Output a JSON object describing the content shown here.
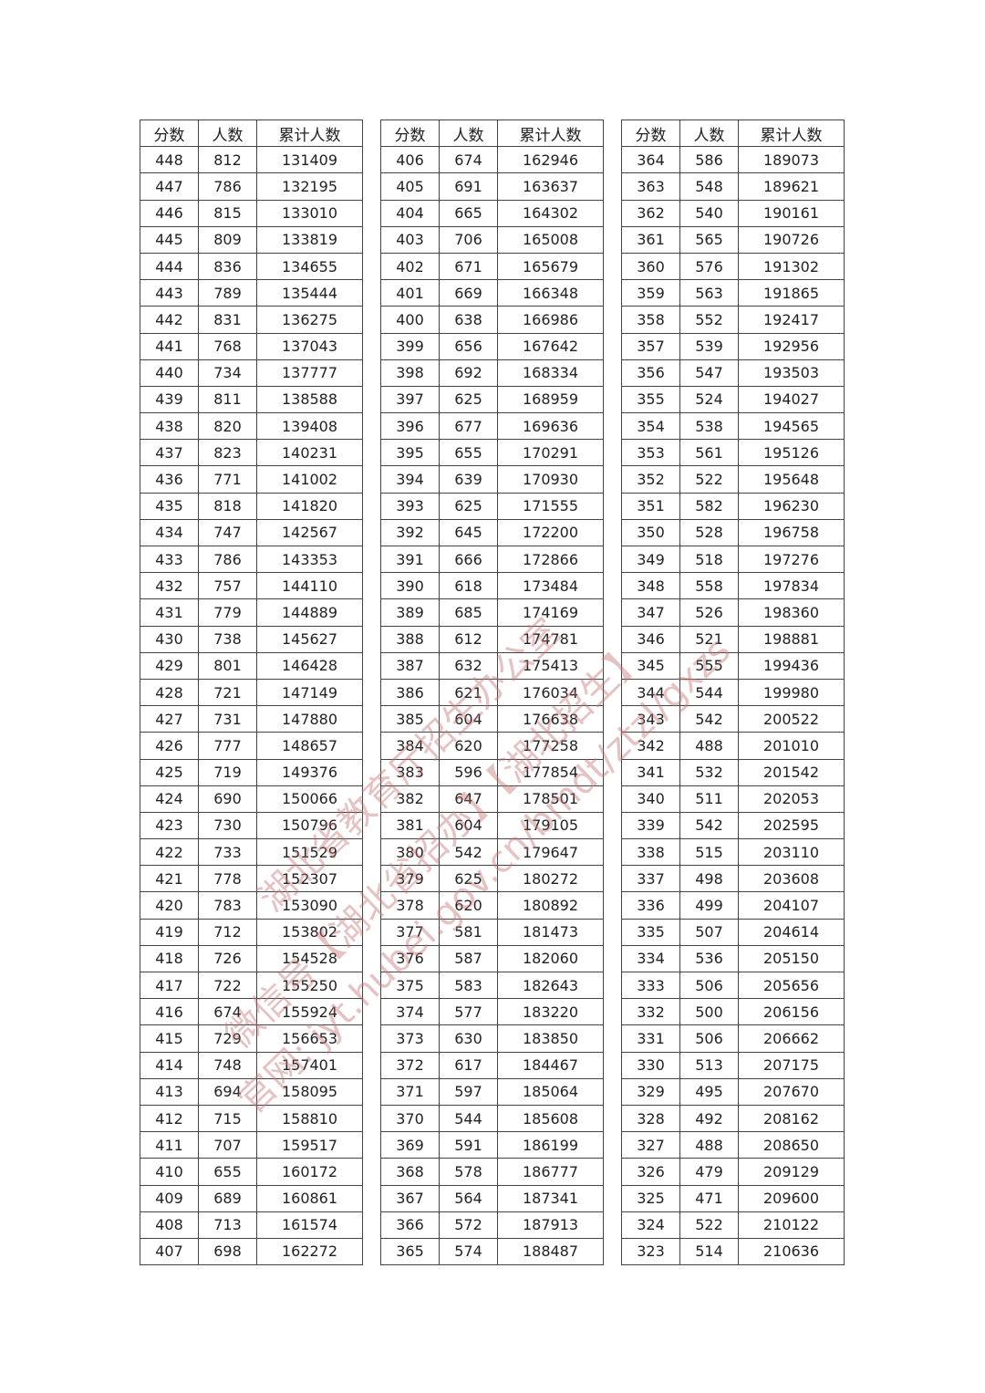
{
  "headers": [
    "分数",
    "人数",
    "累计人数"
  ],
  "tables": [
    [
      [
        448,
        812,
        131409
      ],
      [
        447,
        786,
        132195
      ],
      [
        446,
        815,
        133010
      ],
      [
        445,
        809,
        133819
      ],
      [
        444,
        836,
        134655
      ],
      [
        443,
        789,
        135444
      ],
      [
        442,
        831,
        136275
      ],
      [
        441,
        768,
        137043
      ],
      [
        440,
        734,
        137777
      ],
      [
        439,
        811,
        138588
      ],
      [
        438,
        820,
        139408
      ],
      [
        437,
        823,
        140231
      ],
      [
        436,
        771,
        141002
      ],
      [
        435,
        818,
        141820
      ],
      [
        434,
        747,
        142567
      ],
      [
        433,
        786,
        143353
      ],
      [
        432,
        757,
        144110
      ],
      [
        431,
        779,
        144889
      ],
      [
        430,
        738,
        145627
      ],
      [
        429,
        801,
        146428
      ],
      [
        428,
        721,
        147149
      ],
      [
        427,
        731,
        147880
      ],
      [
        426,
        777,
        148657
      ],
      [
        425,
        719,
        149376
      ],
      [
        424,
        690,
        150066
      ],
      [
        423,
        730,
        150796
      ],
      [
        422,
        733,
        151529
      ],
      [
        421,
        778,
        152307
      ],
      [
        420,
        783,
        153090
      ],
      [
        419,
        712,
        153802
      ],
      [
        418,
        726,
        154528
      ],
      [
        417,
        722,
        155250
      ],
      [
        416,
        674,
        155924
      ],
      [
        415,
        729,
        156653
      ],
      [
        414,
        748,
        157401
      ],
      [
        413,
        694,
        158095
      ],
      [
        412,
        715,
        158810
      ],
      [
        411,
        707,
        159517
      ],
      [
        410,
        655,
        160172
      ],
      [
        409,
        689,
        160861
      ],
      [
        408,
        713,
        161574
      ],
      [
        407,
        698,
        162272
      ]
    ],
    [
      [
        406,
        674,
        162946
      ],
      [
        405,
        691,
        163637
      ],
      [
        404,
        665,
        164302
      ],
      [
        403,
        706,
        165008
      ],
      [
        402,
        671,
        165679
      ],
      [
        401,
        669,
        166348
      ],
      [
        400,
        638,
        166986
      ],
      [
        399,
        656,
        167642
      ],
      [
        398,
        692,
        168334
      ],
      [
        397,
        625,
        168959
      ],
      [
        396,
        677,
        169636
      ],
      [
        395,
        655,
        170291
      ],
      [
        394,
        639,
        170930
      ],
      [
        393,
        625,
        171555
      ],
      [
        392,
        645,
        172200
      ],
      [
        391,
        666,
        172866
      ],
      [
        390,
        618,
        173484
      ],
      [
        389,
        685,
        174169
      ],
      [
        388,
        612,
        174781
      ],
      [
        387,
        632,
        175413
      ],
      [
        386,
        621,
        176034
      ],
      [
        385,
        604,
        176638
      ],
      [
        384,
        620,
        177258
      ],
      [
        383,
        596,
        177854
      ],
      [
        382,
        647,
        178501
      ],
      [
        381,
        604,
        179105
      ],
      [
        380,
        542,
        179647
      ],
      [
        379,
        625,
        180272
      ],
      [
        378,
        620,
        180892
      ],
      [
        377,
        581,
        181473
      ],
      [
        376,
        587,
        182060
      ],
      [
        375,
        583,
        182643
      ],
      [
        374,
        577,
        183220
      ],
      [
        373,
        630,
        183850
      ],
      [
        372,
        617,
        184467
      ],
      [
        371,
        597,
        185064
      ],
      [
        370,
        544,
        185608
      ],
      [
        369,
        591,
        186199
      ],
      [
        368,
        578,
        186777
      ],
      [
        367,
        564,
        187341
      ],
      [
        366,
        572,
        187913
      ],
      [
        365,
        574,
        188487
      ]
    ],
    [
      [
        364,
        586,
        189073
      ],
      [
        363,
        548,
        189621
      ],
      [
        362,
        540,
        190161
      ],
      [
        361,
        565,
        190726
      ],
      [
        360,
        576,
        191302
      ],
      [
        359,
        563,
        191865
      ],
      [
        358,
        552,
        192417
      ],
      [
        357,
        539,
        192956
      ],
      [
        356,
        547,
        193503
      ],
      [
        355,
        524,
        194027
      ],
      [
        354,
        538,
        194565
      ],
      [
        353,
        561,
        195126
      ],
      [
        352,
        522,
        195648
      ],
      [
        351,
        582,
        196230
      ],
      [
        350,
        528,
        196758
      ],
      [
        349,
        518,
        197276
      ],
      [
        348,
        558,
        197834
      ],
      [
        347,
        526,
        198360
      ],
      [
        346,
        521,
        198881
      ],
      [
        345,
        555,
        199436
      ],
      [
        344,
        544,
        199980
      ],
      [
        343,
        542,
        200522
      ],
      [
        342,
        488,
        201010
      ],
      [
        341,
        532,
        201542
      ],
      [
        340,
        511,
        202053
      ],
      [
        339,
        542,
        202595
      ],
      [
        338,
        515,
        203110
      ],
      [
        337,
        498,
        203608
      ],
      [
        336,
        499,
        204107
      ],
      [
        335,
        507,
        204614
      ],
      [
        334,
        536,
        205150
      ],
      [
        333,
        506,
        205656
      ],
      [
        332,
        500,
        206156
      ],
      [
        331,
        506,
        206662
      ],
      [
        330,
        513,
        207175
      ],
      [
        329,
        495,
        207670
      ],
      [
        328,
        492,
        208162
      ],
      [
        327,
        488,
        208650
      ],
      [
        326,
        479,
        209129
      ],
      [
        325,
        471,
        209600
      ],
      [
        324,
        522,
        210122
      ],
      [
        323,
        514,
        210636
      ]
    ]
  ],
  "watermark": {
    "line1": "湖北省教育厅招生办公室",
    "line2": "微信号【湖北省招办】【湖北招生】",
    "line3": "官网: jyt.hubei.gov.cn/bmdt/ztzl/gxzs",
    "color": "#c46e6e"
  }
}
